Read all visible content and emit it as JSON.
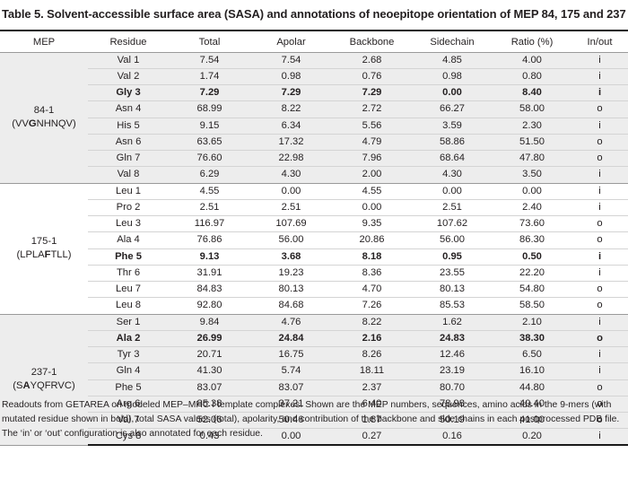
{
  "title": "Table 5. Solvent-accessible surface area (SASA) and annotations of neoepitope orientation of MEP 84, 175 and 237",
  "headers": [
    "MEP",
    "Residue",
    "Total",
    "Apolar",
    "Backbone",
    "Sidechain",
    "Ratio (%)",
    "In/out"
  ],
  "groups": [
    {
      "mep_id": "84-1",
      "seq_pre": "(VV",
      "seq_bold": "G",
      "seq_post": "NHNQV)",
      "rows": [
        {
          "residue": "Val 1",
          "total": "7.54",
          "apolar": "7.54",
          "backbone": "2.68",
          "sidechain": "4.85",
          "ratio": "4.00",
          "inout": "i",
          "bold": false
        },
        {
          "residue": "Val 2",
          "total": "1.74",
          "apolar": "0.98",
          "backbone": "0.76",
          "sidechain": "0.98",
          "ratio": "0.80",
          "inout": "i",
          "bold": false
        },
        {
          "residue": "Gly 3",
          "total": "7.29",
          "apolar": "7.29",
          "backbone": "7.29",
          "sidechain": "0.00",
          "ratio": "8.40",
          "inout": "i",
          "bold": true
        },
        {
          "residue": "Asn 4",
          "total": "68.99",
          "apolar": "8.22",
          "backbone": "2.72",
          "sidechain": "66.27",
          "ratio": "58.00",
          "inout": "o",
          "bold": false
        },
        {
          "residue": "His 5",
          "total": "9.15",
          "apolar": "6.34",
          "backbone": "5.56",
          "sidechain": "3.59",
          "ratio": "2.30",
          "inout": "i",
          "bold": false
        },
        {
          "residue": "Asn 6",
          "total": "63.65",
          "apolar": "17.32",
          "backbone": "4.79",
          "sidechain": "58.86",
          "ratio": "51.50",
          "inout": "o",
          "bold": false
        },
        {
          "residue": "Gln 7",
          "total": "76.60",
          "apolar": "22.98",
          "backbone": "7.96",
          "sidechain": "68.64",
          "ratio": "47.80",
          "inout": "o",
          "bold": false
        },
        {
          "residue": "Val 8",
          "total": "6.29",
          "apolar": "4.30",
          "backbone": "2.00",
          "sidechain": "4.30",
          "ratio": "3.50",
          "inout": "i",
          "bold": false
        }
      ]
    },
    {
      "mep_id": "175-1",
      "seq_pre": "(LPLA",
      "seq_bold": "F",
      "seq_post": "TLL)",
      "rows": [
        {
          "residue": "Leu 1",
          "total": "4.55",
          "apolar": "0.00",
          "backbone": "4.55",
          "sidechain": "0.00",
          "ratio": "0.00",
          "inout": "i",
          "bold": false
        },
        {
          "residue": "Pro 2",
          "total": "2.51",
          "apolar": "2.51",
          "backbone": "0.00",
          "sidechain": "2.51",
          "ratio": "2.40",
          "inout": "i",
          "bold": false
        },
        {
          "residue": "Leu 3",
          "total": "116.97",
          "apolar": "107.69",
          "backbone": "9.35",
          "sidechain": "107.62",
          "ratio": "73.60",
          "inout": "o",
          "bold": false
        },
        {
          "residue": "Ala 4",
          "total": "76.86",
          "apolar": "56.00",
          "backbone": "20.86",
          "sidechain": "56.00",
          "ratio": "86.30",
          "inout": "o",
          "bold": false
        },
        {
          "residue": "Phe 5",
          "total": "9.13",
          "apolar": "3.68",
          "backbone": "8.18",
          "sidechain": "0.95",
          "ratio": "0.50",
          "inout": "i",
          "bold": true
        },
        {
          "residue": "Thr 6",
          "total": "31.91",
          "apolar": "19.23",
          "backbone": "8.36",
          "sidechain": "23.55",
          "ratio": "22.20",
          "inout": "i",
          "bold": false
        },
        {
          "residue": "Leu 7",
          "total": "84.83",
          "apolar": "80.13",
          "backbone": "4.70",
          "sidechain": "80.13",
          "ratio": "54.80",
          "inout": "o",
          "bold": false
        },
        {
          "residue": "Leu 8",
          "total": "92.80",
          "apolar": "84.68",
          "backbone": "7.26",
          "sidechain": "85.53",
          "ratio": "58.50",
          "inout": "o",
          "bold": false
        }
      ]
    },
    {
      "mep_id": "237-1",
      "seq_pre": "(S",
      "seq_bold": "A",
      "seq_post": "YQFRVC)",
      "rows": [
        {
          "residue": "Ser 1",
          "total": "9.84",
          "apolar": "4.76",
          "backbone": "8.22",
          "sidechain": "1.62",
          "ratio": "2.10",
          "inout": "i",
          "bold": false
        },
        {
          "residue": "Ala 2",
          "total": "26.99",
          "apolar": "24.84",
          "backbone": "2.16",
          "sidechain": "24.83",
          "ratio": "38.30",
          "inout": "o",
          "bold": true
        },
        {
          "residue": "Tyr 3",
          "total": "20.71",
          "apolar": "16.75",
          "backbone": "8.26",
          "sidechain": "12.46",
          "ratio": "6.50",
          "inout": "i",
          "bold": false
        },
        {
          "residue": "Gln 4",
          "total": "41.30",
          "apolar": "5.74",
          "backbone": "18.11",
          "sidechain": "23.19",
          "ratio": "16.10",
          "inout": "i",
          "bold": false
        },
        {
          "residue": "Phe 5",
          "total": "83.07",
          "apolar": "83.07",
          "backbone": "2.37",
          "sidechain": "80.70",
          "ratio": "44.80",
          "inout": "o",
          "bold": false
        },
        {
          "residue": "Arg 6",
          "total": "85.38",
          "apolar": "37.21",
          "backbone": "6.40",
          "sidechain": "78.98",
          "ratio": "40.40",
          "inout": "o",
          "bold": false
        },
        {
          "residue": "Val 7",
          "total": "52.06",
          "apolar": "50.46",
          "backbone": "1.87",
          "sidechain": "50.19",
          "ratio": "41.00",
          "inout": "o",
          "bold": false
        },
        {
          "residue": "Cys 8",
          "total": "0.43",
          "apolar": "0.00",
          "backbone": "0.27",
          "sidechain": "0.16",
          "ratio": "0.20",
          "inout": "i",
          "bold": false
        }
      ]
    }
  ],
  "footnote": "Readouts from GETAREA on modeled MEP–MHC I template complexes. Shown are the MEP numbers, sequences, amino acids in the 9-mers (with mutated residue shown in bold), total SASA values (total), apolarity, and contribution of the backbone and side chains in each postprocessed PDB file. The ‘in’ or ‘out’ configuration is also annotated for each residue.",
  "colors": {
    "shade": "#ededed",
    "rule": "#1a1a1a",
    "text": "#231f20"
  }
}
